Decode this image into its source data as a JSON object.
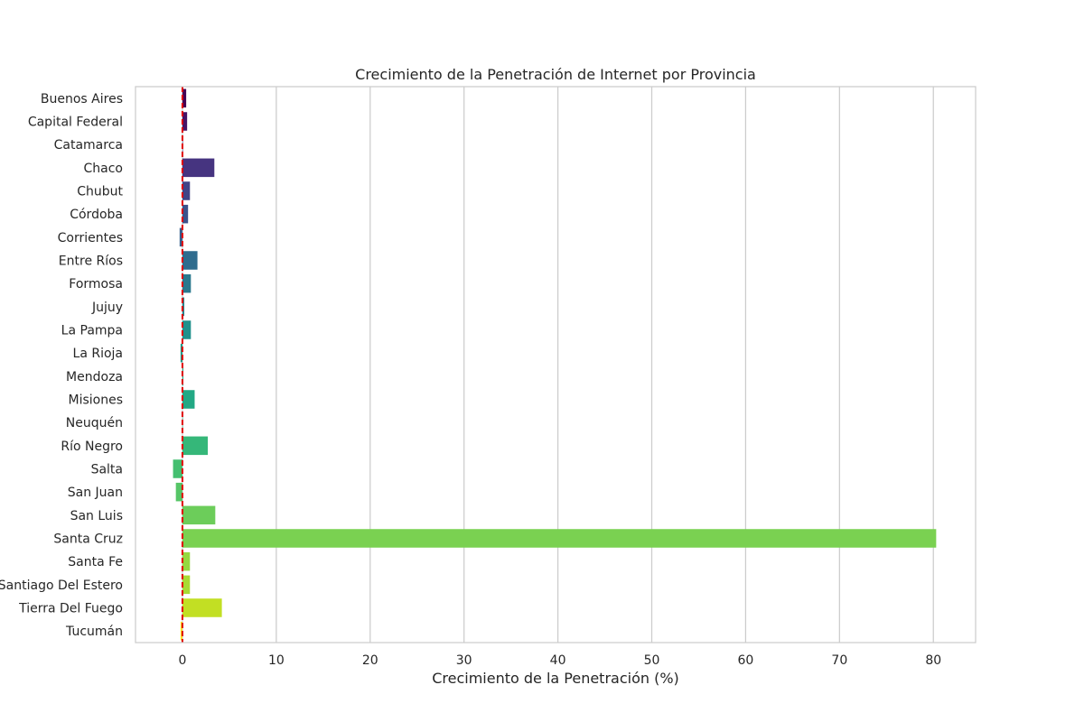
{
  "chart_data": {
    "type": "bar",
    "orientation": "horizontal",
    "title": "Crecimiento de la Penetración de Internet por Provincia",
    "xlabel": "Crecimiento de la Penetración (%)",
    "ylabel": "",
    "xlim": [
      -5,
      84.5
    ],
    "xticks": [
      0,
      10,
      20,
      30,
      40,
      50,
      60,
      70,
      80
    ],
    "grid": "vertical",
    "reference_line": {
      "x": 0,
      "color": "#e00000",
      "style": "dashed"
    },
    "categories": [
      "Buenos Aires",
      "Capital Federal",
      "Catamarca",
      "Chaco",
      "Chubut",
      "Córdoba",
      "Corrientes",
      "Entre Ríos",
      "Formosa",
      "Jujuy",
      "La Pampa",
      "La Rioja",
      "Mendoza",
      "Misiones",
      "Neuquén",
      "Río Negro",
      "Salta",
      "San Juan",
      "San Luis",
      "Santa Cruz",
      "Santa Fe",
      "Santiago Del Estero",
      "Tierra Del Fuego",
      "Tucumán"
    ],
    "values": [
      0.4,
      0.5,
      0.0,
      3.4,
      0.8,
      0.6,
      -0.3,
      1.6,
      0.9,
      0.2,
      0.9,
      -0.2,
      0.1,
      1.3,
      0.0,
      2.7,
      -1.0,
      -0.7,
      3.5,
      80.3,
      0.8,
      0.8,
      4.2,
      -0.2
    ],
    "colors": [
      "#440154",
      "#471365",
      "#482475",
      "#463480",
      "#414487",
      "#3b528b",
      "#355f8d",
      "#2f6c8e",
      "#2a788e",
      "#25848e",
      "#21918c",
      "#1e9c89",
      "#20a884",
      "#22a884",
      "#2ab07f",
      "#35b779",
      "#44bf70",
      "#56c667",
      "#6ccd5a",
      "#7ad151",
      "#95d840",
      "#a8db34",
      "#c2df23",
      "#fde725"
    ]
  }
}
